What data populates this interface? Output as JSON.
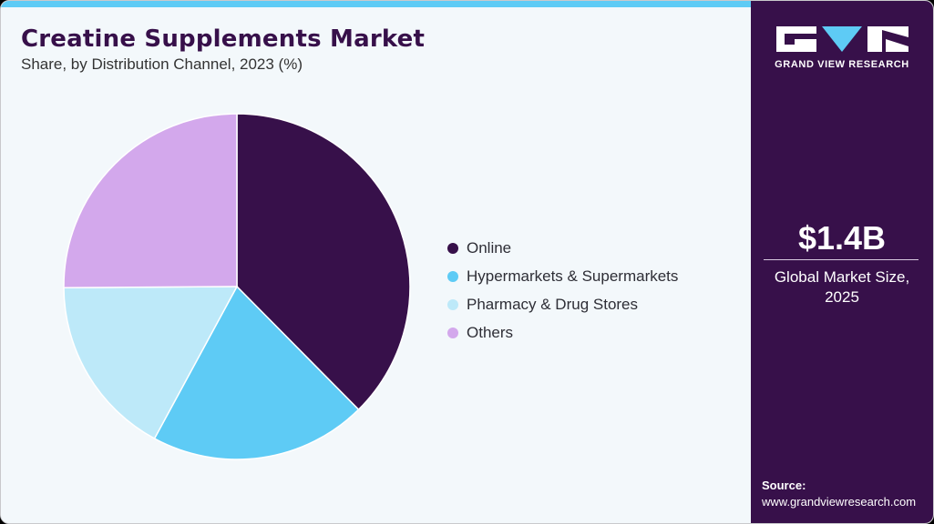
{
  "header": {
    "title": "Creatine Supplements Market",
    "subtitle": "Share, by Distribution Channel, 2023 (%)"
  },
  "colors": {
    "accent_bar": "#5ecbf5",
    "sidebar_bg": "#37104a",
    "page_bg": "#f3f8fb"
  },
  "legend": [
    {
      "label": "Online",
      "color": "#37104a"
    },
    {
      "label": "Hypermarkets & Supermarkets",
      "color": "#5ecbf5"
    },
    {
      "label": "Pharmacy & Drug Stores",
      "color": "#bde9f9"
    },
    {
      "label": "Others",
      "color": "#d3a8ec"
    }
  ],
  "sidebar": {
    "logo_text": "GRAND VIEW RESEARCH",
    "market_value": "$1.4B",
    "market_label_line1": "Global Market Size,",
    "market_label_line2": "2025",
    "source_title": "Source:",
    "source_url": "www.grandviewresearch.com"
  },
  "chart_data": {
    "type": "pie",
    "title": "Creatine Supplements Market",
    "subtitle": "Share, by Distribution Channel, 2023 (%)",
    "categories": [
      "Online",
      "Hypermarkets & Supermarkets",
      "Pharmacy & Drug Stores",
      "Others"
    ],
    "values": [
      37.6,
      20.3,
      17.0,
      25.1
    ],
    "colors": [
      "#37104a",
      "#5ecbf5",
      "#bde9f9",
      "#d3a8ec"
    ],
    "start_angle_deg": 0,
    "direction": "clockwise",
    "legend_position": "right"
  }
}
